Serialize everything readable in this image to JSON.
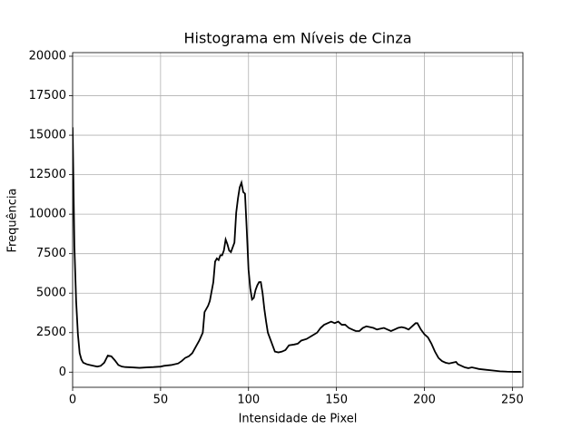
{
  "chart_data": {
    "type": "line",
    "title": "Histograma em Níveis de Cinza",
    "xlabel": "Intensidade de Pixel",
    "ylabel": "Frequência",
    "x": [
      0,
      1,
      2,
      3,
      4,
      5,
      6,
      8,
      10,
      12,
      14,
      16,
      18,
      20,
      22,
      24,
      26,
      28,
      30,
      34,
      38,
      42,
      46,
      50,
      52,
      56,
      60,
      62,
      64,
      66,
      68,
      70,
      72,
      74,
      75,
      77,
      78,
      80,
      81,
      82,
      83,
      84,
      85,
      86,
      87,
      88,
      89,
      90,
      91,
      92,
      93,
      94,
      95,
      96,
      97,
      98,
      99,
      100,
      101,
      102,
      103,
      104,
      105,
      106,
      107,
      108,
      109,
      110,
      111,
      112,
      114,
      115,
      117,
      119,
      121,
      123,
      126,
      128,
      130,
      133,
      136,
      139,
      141,
      143,
      145,
      147,
      149,
      151,
      153,
      155,
      157,
      159,
      161,
      163,
      165,
      167,
      169,
      171,
      173,
      175,
      177,
      179,
      181,
      183,
      185,
      187,
      189,
      191,
      193,
      195,
      196,
      198,
      200,
      202,
      204,
      206,
      208,
      210,
      212,
      214,
      216,
      218,
      219,
      221,
      223,
      225,
      227,
      229,
      231,
      235,
      239,
      243,
      247,
      251,
      255
    ],
    "values": [
      15500,
      8000,
      4500,
      2400,
      1200,
      800,
      600,
      500,
      450,
      400,
      350,
      400,
      600,
      1050,
      1000,
      750,
      450,
      350,
      320,
      300,
      270,
      300,
      320,
      350,
      400,
      450,
      550,
      700,
      900,
      1000,
      1200,
      1600,
      2000,
      2500,
      3800,
      4200,
      4500,
      5700,
      7000,
      7200,
      7100,
      7400,
      7400,
      7700,
      8400,
      8100,
      7700,
      7600,
      7900,
      8200,
      10100,
      11000,
      11700,
      12000,
      11400,
      11300,
      9000,
      6500,
      5300,
      4600,
      4700,
      5200,
      5500,
      5700,
      5700,
      5000,
      4000,
      3200,
      2500,
      2200,
      1600,
      1300,
      1250,
      1300,
      1400,
      1700,
      1750,
      1800,
      2000,
      2100,
      2300,
      2500,
      2800,
      3000,
      3100,
      3200,
      3100,
      3200,
      3000,
      3000,
      2800,
      2700,
      2600,
      2600,
      2800,
      2900,
      2850,
      2800,
      2700,
      2750,
      2800,
      2700,
      2600,
      2700,
      2800,
      2850,
      2800,
      2700,
      2900,
      3100,
      3100,
      2700,
      2400,
      2200,
      1800,
      1300,
      900,
      700,
      600,
      550,
      600,
      650,
      500,
      400,
      300,
      250,
      300,
      250,
      200,
      150,
      100,
      50,
      30,
      20,
      20
    ],
    "color": "#000000",
    "xlim": [
      0,
      256
    ],
    "ylim": [
      -960,
      20230
    ],
    "xticks": [
      0,
      50,
      100,
      150,
      200,
      250
    ],
    "yticks": [
      0,
      2500,
      5000,
      7500,
      10000,
      12500,
      15000,
      17500,
      20000
    ],
    "grid": true
  }
}
